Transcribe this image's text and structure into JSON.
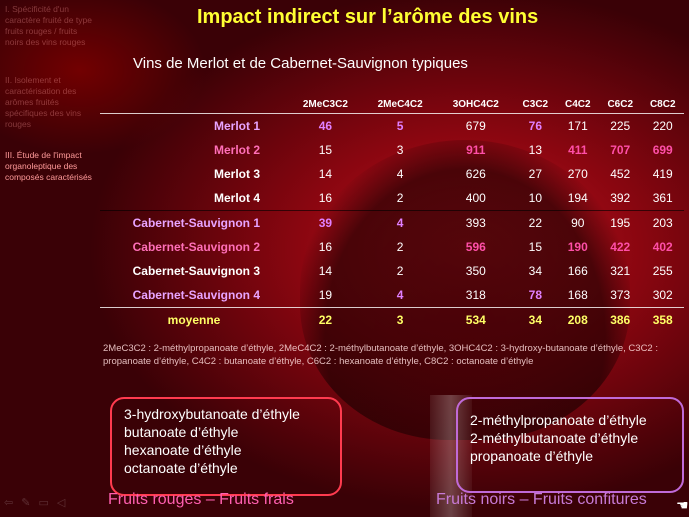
{
  "sidebar": {
    "items": [
      {
        "label": "I. Spécificité d'un caractère fruité de type fruits rouges / fruits noirs des vins rouges"
      },
      {
        "label": "II. Isolement et caractérisation des arômes fruités spécifiques des vins rouges"
      },
      {
        "label": "III. Étude de l'impact organoleptique des composés caractérisés"
      }
    ]
  },
  "slide": {
    "title": "Impact indirect sur l’arôme des vins",
    "subtitle": "Vins de Merlot et de Cabernet-Sauvignon typiques"
  },
  "table": {
    "headers": [
      "2MeC3C2",
      "2MeC4C2",
      "3OHC4C2",
      "C3C2",
      "C4C2",
      "C6C2",
      "C8C2"
    ],
    "rows": [
      {
        "name": "Merlot 1",
        "values": [
          "46",
          "5",
          "679",
          "76",
          "171",
          "225",
          "220"
        ]
      },
      {
        "name": "Merlot 2",
        "values": [
          "15",
          "3",
          "911",
          "13",
          "411",
          "707",
          "699"
        ]
      },
      {
        "name": "Merlot 3",
        "values": [
          "14",
          "4",
          "626",
          "27",
          "270",
          "452",
          "419"
        ]
      },
      {
        "name": "Merlot 4",
        "values": [
          "16",
          "2",
          "400",
          "10",
          "194",
          "392",
          "361"
        ]
      },
      {
        "name": "Cabernet-Sauvignon 1",
        "values": [
          "39",
          "4",
          "393",
          "22",
          "90",
          "195",
          "203"
        ]
      },
      {
        "name": "Cabernet-Sauvignon 2",
        "values": [
          "16",
          "2",
          "596",
          "15",
          "190",
          "422",
          "402"
        ]
      },
      {
        "name": "Cabernet-Sauvignon 3",
        "values": [
          "14",
          "2",
          "350",
          "34",
          "166",
          "321",
          "255"
        ]
      },
      {
        "name": "Cabernet-Sauvignon 4",
        "values": [
          "19",
          "4",
          "318",
          "78",
          "168",
          "373",
          "302"
        ]
      }
    ],
    "average": {
      "name": "moyenne",
      "values": [
        "22",
        "3",
        "534",
        "34",
        "208",
        "386",
        "358"
      ]
    }
  },
  "legend": "2MeC3C2 : 2-méthylpropanoate d’éthyle, 2MeC4C2 : 2-méthylbutanoate d’éthyle, 3OHC4C2 : 3-hydroxy-butanoate d’éthyle, C3C2 : propanoate d’éthyle, C4C2 : butanoate d’éthyle, C6C2 : hexanoate d’éthyle, C8C2 : octanoate d’éthyle",
  "box_left": {
    "lines": [
      "3-hydroxybutanoate d’éthyle",
      "butanoate d’éthyle",
      "hexanoate d’éthyle",
      "octanoate d’éthyle"
    ]
  },
  "box_right": {
    "lines": [
      "2-méthylpropanoate d’éthyle",
      "2-méthylbutanoate d’éthyle",
      "propanoate d’éthyle"
    ]
  },
  "captions": {
    "left": "Fruits rouges – Fruits frais",
    "right": "Fruits noirs – Fruits confitures"
  },
  "toolbar": {
    "icons": [
      "back-arrow-icon",
      "pen-icon",
      "menu-icon",
      "speaker-icon"
    ]
  },
  "colors": {
    "title": "#ffff33",
    "highlight_magenta": "#e080ff",
    "highlight_pink": "#ff4fa8",
    "box_left_border": "#ff3b4f",
    "box_right_border": "#c06ad8"
  }
}
